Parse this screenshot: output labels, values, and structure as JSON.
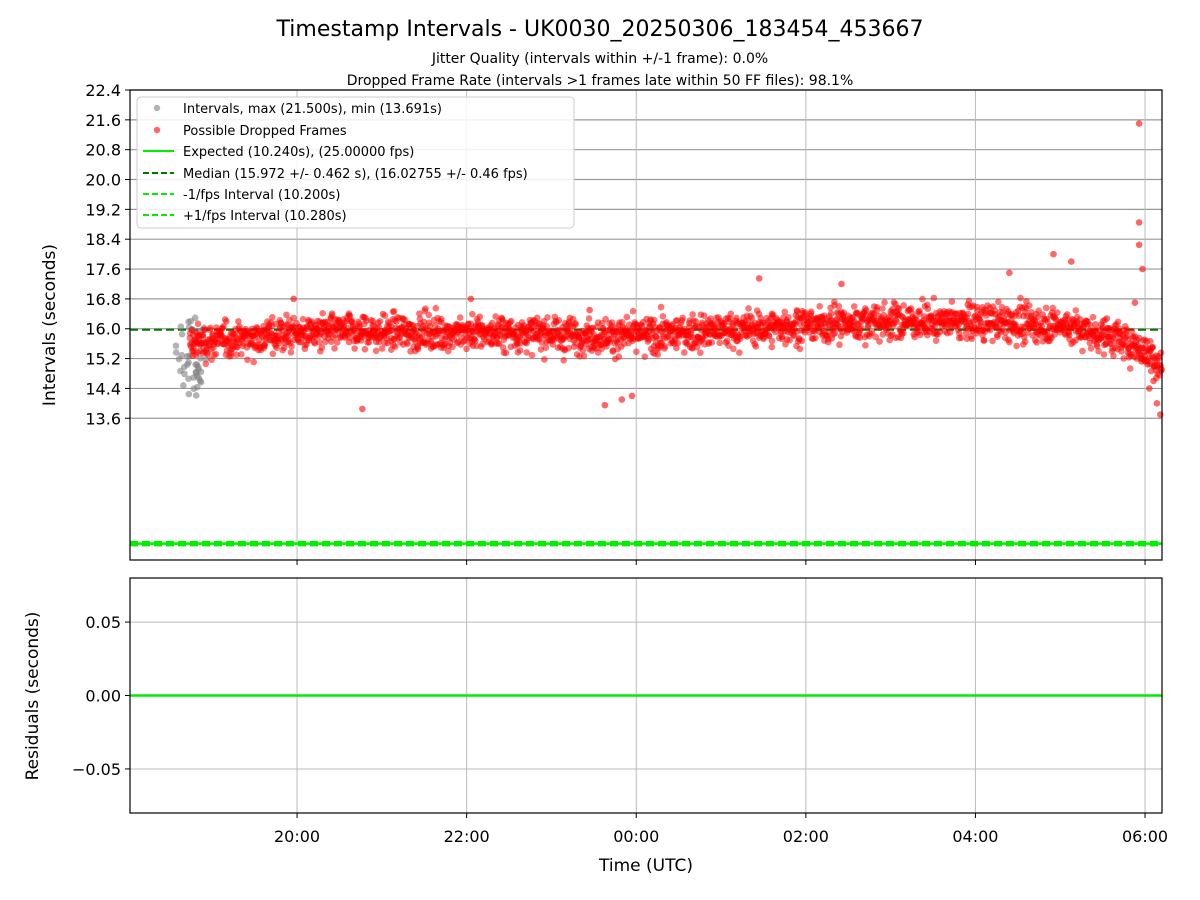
{
  "figure": {
    "title": "Timestamp Intervals - UK0030_20250306_183454_453667",
    "subtitle1": "Jitter Quality (intervals within +/-1 frame): 0.0%",
    "subtitle2": "Dropped Frame Rate (intervals >1 frames late within 50 FF files): 98.1%"
  },
  "chart_data": [
    {
      "type": "scatter",
      "ylabel": "Intervals (seconds)",
      "xlabel": "",
      "ylim": [
        9.8,
        22.4
      ],
      "yticks": [
        "13.6",
        "14.4",
        "15.2",
        "16.0",
        "16.8",
        "17.6",
        "18.4",
        "19.2",
        "20.0",
        "20.8",
        "21.6",
        "22.4"
      ],
      "x_time_range_hours": [
        18.03,
        30.2
      ],
      "grid": true,
      "legend_position": "top-left",
      "legend": [
        "Intervals, max (21.500s), min (13.691s)",
        "Possible Dropped Frames",
        "Expected (10.240s), (25.00000 fps)",
        "Median (15.972 +/- 0.462 s), (16.02755 +/- 0.46 fps)",
        "-1/fps Interval (10.200s)",
        "+1/fps Interval (10.280s)"
      ],
      "series": [
        {
          "name": "Intervals, max (21.500s), min (13.691s)",
          "color": "#808080",
          "x_range": [
            "18:34",
            "18:56"
          ],
          "y_range": [
            14.2,
            16.3
          ]
        },
        {
          "name": "Possible Dropped Frames",
          "color": "#ff0000",
          "x_range": [
            "18:44",
            "06:12"
          ],
          "y_range": [
            13.691,
            21.5
          ],
          "trend_y_at_hours": [
            [
              18.7,
              15.6
            ],
            [
              20.0,
              15.9
            ],
            [
              22.0,
              15.9
            ],
            [
              24.0,
              15.8
            ],
            [
              26.0,
              16.1
            ],
            [
              27.0,
              16.2
            ],
            [
              28.0,
              16.2
            ],
            [
              29.0,
              16.1
            ],
            [
              29.6,
              15.8
            ],
            [
              30.0,
              15.4
            ],
            [
              30.2,
              15.0
            ]
          ],
          "outliers": [
            [
              19.96,
              16.8
            ],
            [
              20.77,
              13.85
            ],
            [
              22.05,
              16.8
            ],
            [
              23.45,
              16.5
            ],
            [
              23.63,
              13.95
            ],
            [
              23.83,
              14.1
            ],
            [
              23.95,
              14.2
            ],
            [
              25.45,
              17.35
            ],
            [
              26.42,
              17.2
            ],
            [
              28.4,
              17.5
            ],
            [
              28.92,
              18.0
            ],
            [
              29.13,
              17.8
            ],
            [
              29.93,
              21.5
            ],
            [
              29.93,
              18.85
            ],
            [
              29.93,
              18.25
            ],
            [
              29.97,
              17.6
            ],
            [
              29.88,
              16.7
            ],
            [
              30.18,
              13.7
            ],
            [
              30.14,
              14.0
            ],
            [
              30.05,
              14.4
            ],
            [
              30.1,
              14.6
            ]
          ]
        },
        {
          "name": "Expected (10.240s), (25.00000 fps)",
          "color": "#00ee00",
          "y": 10.24
        },
        {
          "name": "Median (15.972 +/- 0.462 s), (16.02755 +/- 0.46 fps)",
          "color": "#007700",
          "y": 15.972
        },
        {
          "name": "-1/fps Interval (10.200s)",
          "color": "#00ee00",
          "y": 10.2
        },
        {
          "name": "+1/fps Interval (10.280s)",
          "color": "#00ee00",
          "y": 10.28
        }
      ]
    },
    {
      "type": "line",
      "ylabel": "Residuals (seconds)",
      "xlabel": "Time (UTC)",
      "ylim": [
        -0.08,
        0.08
      ],
      "yticks": [
        "0.05",
        "0.00",
        "−0.05"
      ],
      "xticks": [
        "20:00",
        "22:00",
        "00:00",
        "02:00",
        "04:00",
        "06:00"
      ],
      "grid": true,
      "series": [
        {
          "name": "",
          "color": "#00ee00",
          "y": 0.0
        }
      ]
    }
  ]
}
